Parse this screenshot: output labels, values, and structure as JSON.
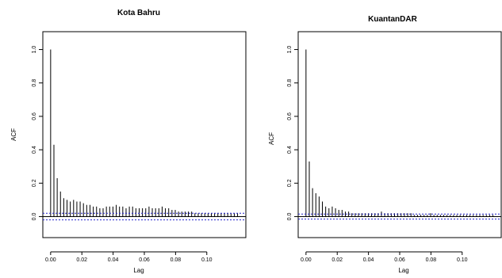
{
  "chart_data": [
    {
      "type": "bar",
      "title": "Kota Bahru",
      "xlabel": "Lag",
      "ylabel": "ACF",
      "xlim": [
        -0.005,
        0.125
      ],
      "ylim": [
        -0.05,
        1.05
      ],
      "x_ticks": [
        "0.00",
        "0.02",
        "0.04",
        "0.06",
        "0.08",
        "0.10"
      ],
      "y_ticks": [
        "0.0",
        "0.2",
        "0.4",
        "0.6",
        "0.8",
        "1.0"
      ],
      "lag_step": 0.0021,
      "values": [
        1.0,
        0.43,
        0.23,
        0.15,
        0.11,
        0.1,
        0.09,
        0.1,
        0.09,
        0.09,
        0.08,
        0.07,
        0.07,
        0.06,
        0.06,
        0.05,
        0.05,
        0.06,
        0.06,
        0.06,
        0.07,
        0.06,
        0.06,
        0.05,
        0.06,
        0.06,
        0.05,
        0.05,
        0.05,
        0.05,
        0.06,
        0.05,
        0.05,
        0.05,
        0.06,
        0.05,
        0.05,
        0.04,
        0.04,
        0.03,
        0.03,
        0.03,
        0.03,
        0.03,
        0.02,
        0.02,
        0.02,
        0.02,
        0.02,
        0.02,
        0.02,
        0.02,
        0.02,
        0.02,
        0.02,
        0.02,
        0.02,
        0.02
      ],
      "confidence_band": [
        -0.02,
        0.02
      ],
      "grid": false,
      "colors": {
        "bars": "#000000",
        "zero_line": "#000000",
        "confidence": "#2222cc"
      }
    },
    {
      "type": "bar",
      "title": "KuantanDAR",
      "xlabel": "Lag",
      "ylabel": "ACF",
      "xlim": [
        -0.005,
        0.125
      ],
      "ylim": [
        -0.05,
        1.05
      ],
      "x_ticks": [
        "0.00",
        "0.02",
        "0.04",
        "0.06",
        "0.08",
        "0.10"
      ],
      "y_ticks": [
        "0.0",
        "0.2",
        "0.4",
        "0.6",
        "0.8",
        "1.0"
      ],
      "lag_step": 0.0021,
      "values": [
        1.0,
        0.33,
        0.17,
        0.14,
        0.12,
        0.09,
        0.06,
        0.05,
        0.06,
        0.05,
        0.04,
        0.04,
        0.03,
        0.03,
        0.02,
        0.02,
        0.02,
        0.02,
        0.02,
        0.02,
        0.02,
        0.02,
        0.02,
        0.03,
        0.02,
        0.02,
        0.02,
        0.02,
        0.02,
        0.02,
        0.02,
        0.02,
        0.02,
        0.01,
        0.01,
        0.01,
        0.01,
        0.01,
        0.02,
        0.01,
        0.01,
        0.01,
        0.01,
        0.01,
        0.01,
        0.01,
        0.01,
        0.01,
        0.01,
        0.01,
        0.01,
        0.01,
        0.01,
        0.01,
        0.01,
        0.01,
        0.01,
        0.01
      ],
      "confidence_band": [
        -0.015,
        0.015
      ],
      "grid": false,
      "colors": {
        "bars": "#000000",
        "zero_line": "#000000",
        "confidence": "#2222cc"
      }
    }
  ]
}
